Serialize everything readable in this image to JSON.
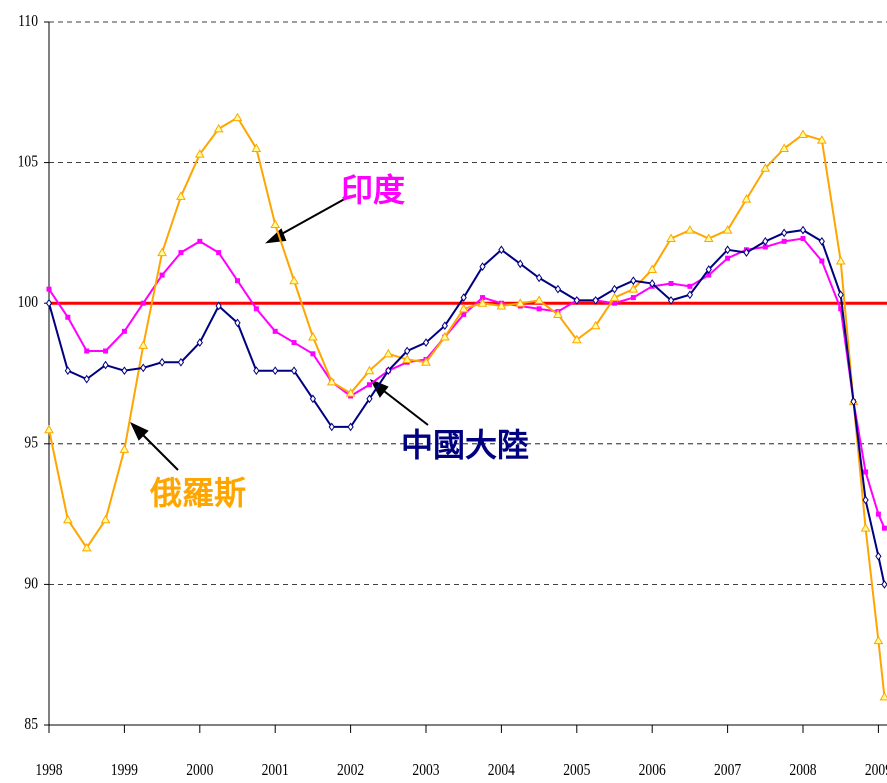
{
  "chart_data": {
    "type": "line",
    "x": [
      1998,
      1998.25,
      1998.5,
      1998.75,
      1999,
      1999.25,
      1999.5,
      1999.75,
      2000,
      2000.25,
      2000.5,
      2000.75,
      2001,
      2001.25,
      2001.5,
      2001.75,
      2002,
      2002.25,
      2002.5,
      2002.75,
      2003,
      2003.25,
      2003.5,
      2003.75,
      2004,
      2004.25,
      2004.5,
      2004.75,
      2005,
      2005.25,
      2005.5,
      2005.75,
      2006,
      2006.25,
      2006.5,
      2006.75,
      2007,
      2007.25,
      2007.5,
      2007.75,
      2008,
      2008.25,
      2008.5,
      2008.67,
      2008.83,
      2009,
      2009.08
    ],
    "series": [
      {
        "name": "印度",
        "color": "#ff00ff",
        "marker": "square",
        "values": [
          100.5,
          99.5,
          98.3,
          98.3,
          99,
          100,
          101,
          101.8,
          102.2,
          101.8,
          100.8,
          99.8,
          99,
          98.6,
          98.2,
          97.2,
          96.7,
          97.1,
          97.6,
          97.9,
          98,
          98.8,
          99.6,
          100.2,
          100,
          99.9,
          99.8,
          99.7,
          100.1,
          100.1,
          100,
          100.2,
          100.6,
          100.7,
          100.6,
          101,
          101.6,
          101.9,
          102,
          102.2,
          102.3,
          101.5,
          99.8,
          96.5,
          94,
          92.5,
          92
        ]
      },
      {
        "name": "俄羅斯",
        "color": "#ffa500",
        "marker": "triangle",
        "values": [
          95.5,
          92.3,
          91.3,
          92.3,
          94.8,
          98.5,
          101.8,
          103.8,
          105.3,
          106.2,
          106.6,
          105.5,
          102.8,
          100.8,
          98.8,
          97.2,
          96.8,
          97.6,
          98.2,
          98,
          97.9,
          98.8,
          99.8,
          100,
          99.9,
          100,
          100.1,
          99.6,
          98.7,
          99.2,
          100.2,
          100.5,
          101.2,
          102.3,
          102.6,
          102.3,
          102.6,
          103.7,
          104.8,
          105.5,
          106,
          105.8,
          101.5,
          96.5,
          92,
          88,
          86
        ]
      },
      {
        "name": "中國大陸",
        "color": "#000080",
        "marker": "diamond",
        "values": [
          100,
          97.6,
          97.3,
          97.8,
          97.6,
          97.7,
          97.9,
          97.9,
          98.6,
          99.9,
          99.3,
          97.6,
          97.6,
          97.6,
          96.6,
          95.6,
          95.6,
          96.6,
          97.6,
          98.3,
          98.6,
          99.2,
          100.2,
          101.3,
          101.9,
          101.4,
          100.9,
          100.5,
          100.1,
          100.1,
          100.5,
          100.8,
          100.7,
          100.1,
          100.3,
          101.2,
          101.9,
          101.8,
          102.2,
          102.5,
          102.6,
          102.2,
          100.3,
          96.5,
          93,
          91,
          90
        ]
      }
    ],
    "reference": {
      "value": 100,
      "color": "#ff0000"
    },
    "xlim": [
      1998,
      2009.1
    ],
    "xticks": [
      1998,
      1999,
      2000,
      2001,
      2002,
      2003,
      2004,
      2005,
      2006,
      2007,
      2008,
      2009
    ],
    "ylim": [
      85,
      110
    ],
    "yticks": [
      85,
      90,
      95,
      100,
      105,
      110
    ],
    "grid": true
  }
}
